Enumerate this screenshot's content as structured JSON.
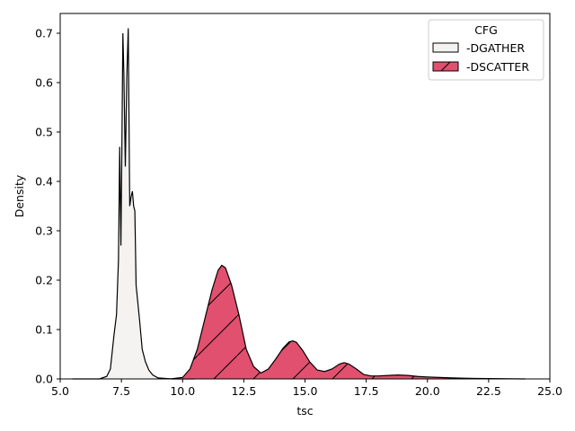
{
  "chart_data": {
    "type": "area",
    "xlabel": "tsc",
    "ylabel": "Density",
    "xlim": [
      5.0,
      25.0
    ],
    "ylim": [
      0.0,
      0.74
    ],
    "x_ticks": [
      5.0,
      7.5,
      10.0,
      12.5,
      15.0,
      17.5,
      20.0,
      22.5,
      25.0
    ],
    "x_tick_labels": [
      "5.0",
      "7.5",
      "10.0",
      "12.5",
      "15.0",
      "17.5",
      "20.0",
      "22.5",
      "25.0"
    ],
    "y_ticks": [
      0.0,
      0.1,
      0.2,
      0.3,
      0.4,
      0.5,
      0.6,
      0.7
    ],
    "y_tick_labels": [
      "0.0",
      "0.1",
      "0.2",
      "0.3",
      "0.4",
      "0.5",
      "0.6",
      "0.7"
    ],
    "grid": false,
    "legend": {
      "title": "CFG",
      "placement": "top-right"
    },
    "series": [
      {
        "name": "-DGATHER",
        "fill": "#f4f3f2",
        "stroke": "#000000",
        "hatch": false,
        "x": [
          5.5,
          6.6,
          6.9,
          7.05,
          7.2,
          7.3,
          7.38,
          7.43,
          7.48,
          7.52,
          7.56,
          7.6,
          7.66,
          7.72,
          7.78,
          7.84,
          7.9,
          7.95,
          8.0,
          8.05,
          8.1,
          8.16,
          8.24,
          8.35,
          8.48,
          8.62,
          8.78,
          9.0,
          9.3,
          9.6,
          10.0,
          10.5
        ],
        "y": [
          0.0,
          0.0,
          0.005,
          0.02,
          0.09,
          0.13,
          0.24,
          0.47,
          0.27,
          0.47,
          0.7,
          0.62,
          0.43,
          0.61,
          0.71,
          0.35,
          0.37,
          0.38,
          0.35,
          0.34,
          0.19,
          0.16,
          0.12,
          0.06,
          0.035,
          0.018,
          0.008,
          0.002,
          0.001,
          0.0,
          0.0,
          0.0
        ]
      },
      {
        "name": "-DSCATTER",
        "fill": "#e1506e",
        "stroke": "#000000",
        "hatch": true,
        "x": [
          9.5,
          10.0,
          10.3,
          10.6,
          10.9,
          11.2,
          11.45,
          11.6,
          11.75,
          12.0,
          12.3,
          12.6,
          12.9,
          13.2,
          13.5,
          13.8,
          14.1,
          14.35,
          14.5,
          14.65,
          14.9,
          15.2,
          15.5,
          15.8,
          16.1,
          16.4,
          16.6,
          16.8,
          17.1,
          17.4,
          17.7,
          18.0,
          18.4,
          18.8,
          19.2,
          19.6,
          20.0,
          20.5,
          21.0,
          21.5,
          22.0,
          22.5,
          23.0,
          23.5,
          24.0
        ],
        "y": [
          0.0,
          0.003,
          0.02,
          0.06,
          0.12,
          0.18,
          0.22,
          0.23,
          0.225,
          0.19,
          0.13,
          0.06,
          0.025,
          0.012,
          0.02,
          0.04,
          0.062,
          0.075,
          0.077,
          0.074,
          0.058,
          0.034,
          0.018,
          0.015,
          0.02,
          0.03,
          0.033,
          0.03,
          0.02,
          0.009,
          0.006,
          0.006,
          0.007,
          0.008,
          0.007,
          0.005,
          0.004,
          0.003,
          0.002,
          0.0015,
          0.001,
          0.0008,
          0.0005,
          0.0002,
          0.0
        ]
      }
    ]
  }
}
